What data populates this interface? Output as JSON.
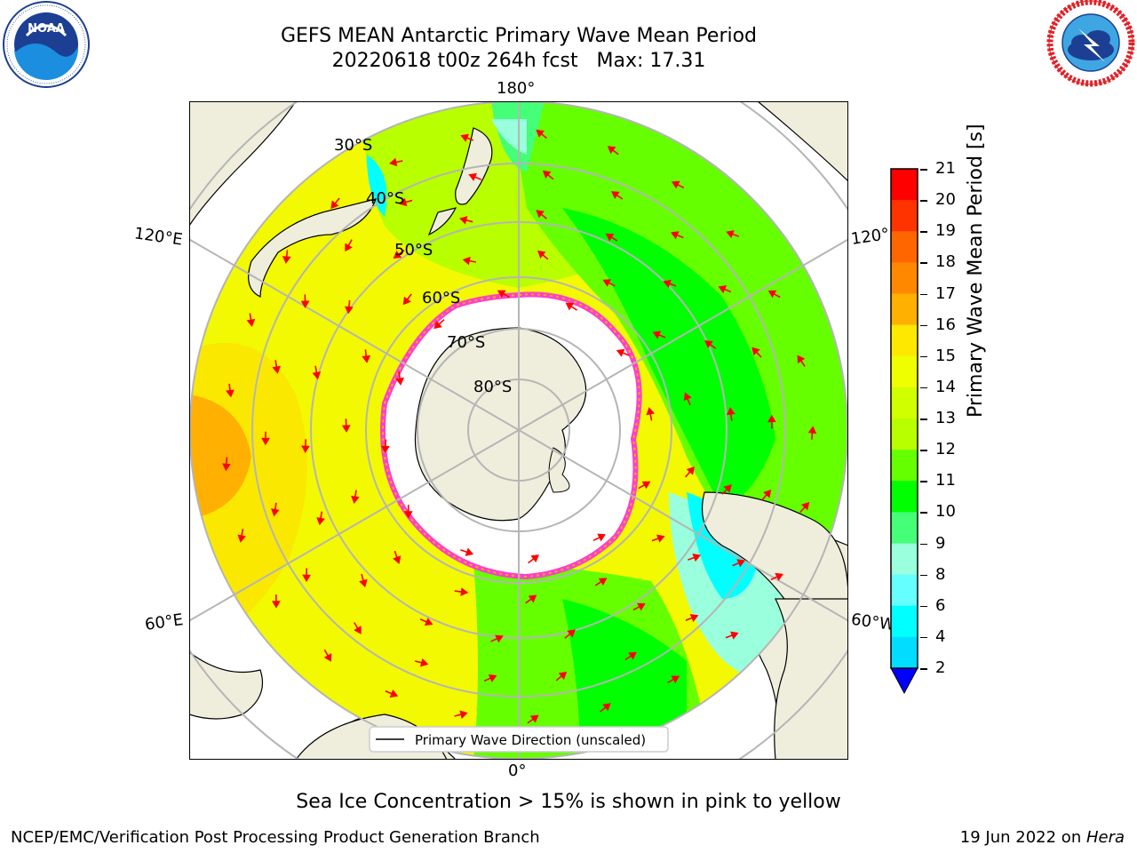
{
  "title": {
    "line1": "GEFS MEAN Antarctic Primary Wave Mean Period",
    "line2": "20220618 t00z 264h fcst   Max: 17.31"
  },
  "logos": {
    "left": {
      "text": "NOAA",
      "ring_text": "NATIONAL OCEANIC AND ATMOSPHERIC ADMINISTRATION · U.S. DEPARTMENT OF COMMERCE",
      "icon": "noaa-logo-icon"
    },
    "right": {
      "ring_text": "NATIONAL WEATHER SERVICE",
      "icon": "nws-logo-icon"
    }
  },
  "map": {
    "projection": "south-polar-stereographic",
    "longitude_labels": {
      "top": "180°",
      "bottom": "0°",
      "left_upper": "120°E",
      "left_lower": "60°E",
      "right_upper": "120°",
      "right_lower": "60°W"
    },
    "latitude_labels": [
      "30°S",
      "40°S",
      "50°S",
      "60°S",
      "70°S",
      "80°S"
    ],
    "legend": "Primary Wave Direction (unscaled)",
    "colors": {
      "land": "#efeedd",
      "sea_ice": "#ffffff",
      "arrow": "#ff0000",
      "grid": "#b5b5b5"
    }
  },
  "colorbar": {
    "label": "Primary Wave Mean Period [s]",
    "ticks": [
      "21",
      "20",
      "19",
      "18",
      "17",
      "16",
      "15",
      "14",
      "13",
      "12",
      "11",
      "10",
      "9",
      "8",
      "6",
      "4",
      "2"
    ],
    "colors": [
      "#ff0000",
      "#ff3300",
      "#ff6600",
      "#ff8800",
      "#ffb000",
      "#ffe800",
      "#f0ff00",
      "#d0ff00",
      "#b8ff00",
      "#66ff00",
      "#00ff00",
      "#44ff77",
      "#99ffdd",
      "#66ffff",
      "#00ffff",
      "#00ddff",
      "#0077ff",
      "#0000ff"
    ]
  },
  "notes": {
    "ice": "Sea Ice Concentration > 15% is shown in pink to yellow"
  },
  "footer": {
    "left": "NCEP/EMC/Verification Post Processing Product Generation Branch",
    "right_prefix": "19 Jun 2022 on ",
    "right_italic": "Hera"
  }
}
